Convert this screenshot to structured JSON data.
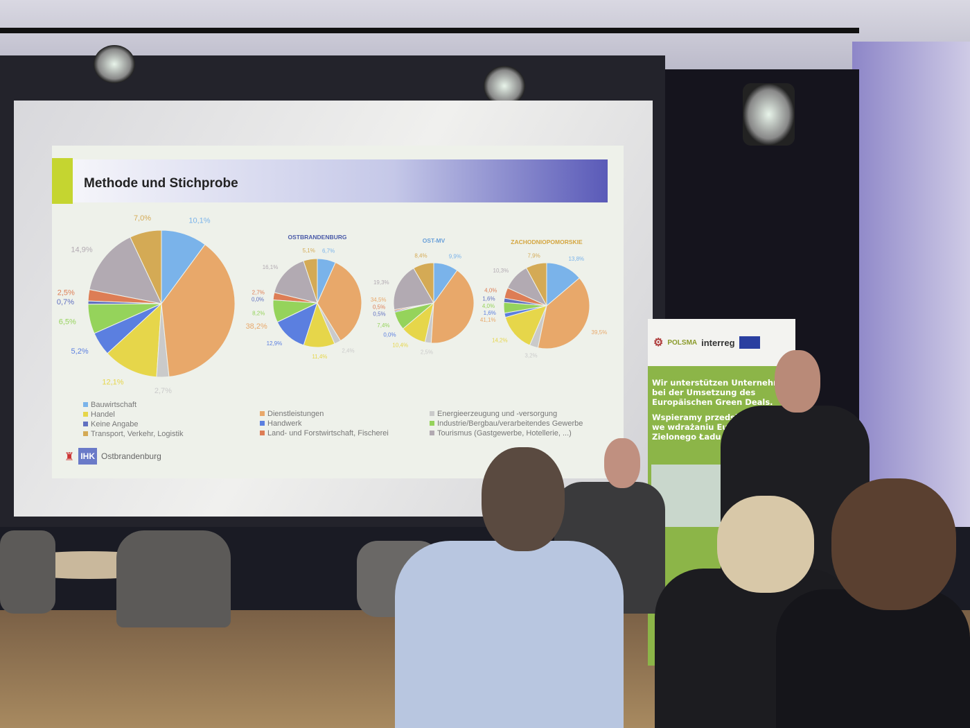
{
  "slide": {
    "title": "Methode und Stichprobe",
    "logo_text": "IHK",
    "logo_name": "Ostbrandenburg"
  },
  "colors": {
    "Bauwirtschaft": "#7ab3ea",
    "Dienstleistungen": "#e8a86a",
    "Energieerzeugung und -versorgung": "#cacaca",
    "Handel": "#e6d64a",
    "Handwerk": "#5b7fe0",
    "Industrie/Bergbau/verarbeitendes Gewerbe": "#95d35b",
    "Keine Angabe": "#6070c0",
    "Land- und Forstwirtschaft, Fischerei": "#dd7d55",
    "Tourismus (Gastgewerbe, Hotellerie, ...)": "#b2aab2",
    "Transport, Verkehr, Logistik": "#d4aa55"
  },
  "chart_data": [
    {
      "type": "pie",
      "title": "",
      "categories": [
        "Bauwirtschaft",
        "Dienstleistungen",
        "Energieerzeugung und -versorgung",
        "Handel",
        "Handwerk",
        "Industrie/Bergbau/verarbeitendes Gewerbe",
        "Keine Angabe",
        "Land- und Forstwirtschaft, Fischerei",
        "Tourismus (Gastgewerbe, Hotellerie, ...)",
        "Transport, Verkehr, Logistik"
      ],
      "values": [
        10.1,
        38.2,
        2.7,
        12.1,
        5.2,
        6.5,
        0.7,
        2.5,
        14.9,
        7.0
      ],
      "labels": [
        "10,1%",
        "38,2%",
        "2,7%",
        "12,1%",
        "5,2%",
        "6,5%",
        "0,7%",
        "2,5%",
        "14,9%",
        "7,0%"
      ]
    },
    {
      "type": "pie",
      "title": "OSTBRANDENBURG",
      "title_color": "#4a5aa8",
      "values": [
        6.7,
        34.5,
        2.4,
        11.4,
        12.9,
        8.2,
        0.0,
        2.7,
        16.1,
        5.1
      ],
      "labels": [
        "6,7%",
        "34,5%",
        "2,4%",
        "11,4%",
        "12,9%",
        "8,2%",
        "0,0%",
        "2,7%",
        "16,1%",
        "5,1%"
      ]
    },
    {
      "type": "pie",
      "title": "OST-MV",
      "title_color": "#6aa0d8",
      "values": [
        9.9,
        41.1,
        2.5,
        10.4,
        0.0,
        7.4,
        0.5,
        0.5,
        19.3,
        8.4
      ],
      "labels": [
        "9,9%",
        "41,1%",
        "2,5%",
        "10,4%",
        "0,0%",
        "7,4%",
        "0,5%",
        "0,5%",
        "19,3%",
        "8,4%"
      ]
    },
    {
      "type": "pie",
      "title": "ZACHODNIOPOMORSKIE",
      "title_color": "#d4a640",
      "values": [
        13.8,
        39.5,
        3.2,
        14.2,
        1.6,
        4.0,
        1.6,
        4.0,
        10.3,
        7.9
      ],
      "labels": [
        "13,8%",
        "39,5%",
        "3,2%",
        "14,2%",
        "1,6%",
        "4,0%",
        "1,6%",
        "4,0%",
        "10,3%",
        "7,9%"
      ]
    }
  ],
  "legend": [
    [
      "Bauwirtschaft",
      "Handel",
      "Keine Angabe",
      "Transport, Verkehr, Logistik"
    ],
    [
      "Dienstleistungen",
      "Handwerk",
      "Land- und Forstwirtschaft, Fischerei"
    ],
    [
      "Energieerzeugung und -versorgung",
      "Industrie/Bergbau/verarbeitendes Gewerbe",
      "Tourismus (Gastgewerbe, Hotellerie, ...)"
    ]
  ],
  "banner": {
    "brand1": "POLSMA",
    "brand2": "interreg",
    "line_de": "Wir unterstützen Unternehmen bei der Umsetzung des Europäischen Green Deals.",
    "line_pl": "Wspieramy przedsiębiorstwa we wdrażaniu Europejskiego Zielonego Ładu."
  }
}
